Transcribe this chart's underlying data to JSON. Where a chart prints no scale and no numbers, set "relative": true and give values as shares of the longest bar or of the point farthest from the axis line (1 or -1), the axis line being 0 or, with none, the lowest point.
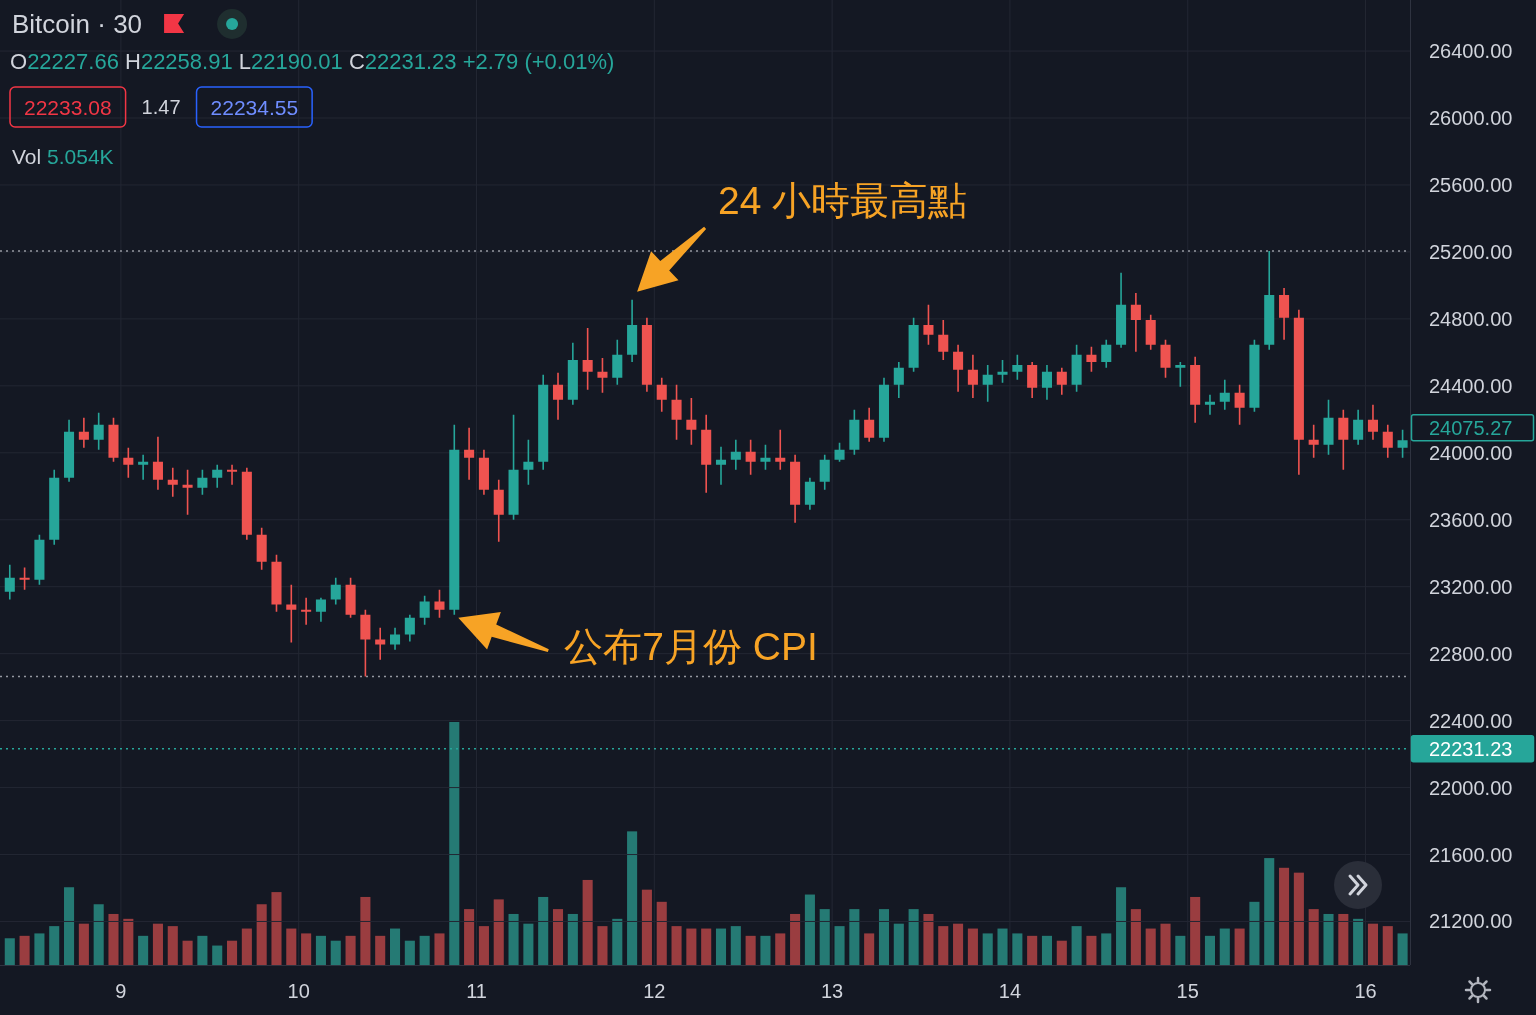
{
  "chart_data": [
    {
      "type": "candlestick",
      "title": "Bitcoin · 30",
      "annotations": [
        "O22227.66 H22258.91 L22190.01 C22231.23 +2.79 (+0.01%)",
        "22233.08",
        "1.47",
        "22234.55",
        {
          "text": "24 小時最高點",
          "x": 11.875,
          "y": 24914
        },
        {
          "text": "公布7月份 CPI",
          "x": 10.875,
          "y": 23033
        },
        "24075.27"
      ],
      "x": [
        8.375,
        8.4583,
        8.5417,
        8.625,
        8.7083,
        8.7917,
        8.875,
        8.9583,
        9.0417,
        9.125,
        9.2083,
        9.2917,
        9.375,
        9.4583,
        9.5417,
        9.625,
        9.7083,
        9.7917,
        9.875,
        9.9583,
        10.0417,
        10.125,
        10.2083,
        10.2917,
        10.375,
        10.4583,
        10.5417,
        10.625,
        10.7083,
        10.7917,
        10.875,
        10.9583,
        11.0417,
        11.125,
        11.2083,
        11.2917,
        11.375,
        11.4583,
        11.5417,
        11.625,
        11.7083,
        11.7917,
        11.875,
        11.9583,
        12.0417,
        12.125,
        12.2083,
        12.2917,
        12.375,
        12.4583,
        12.5417,
        12.625,
        12.7083,
        12.7917,
        12.875,
        12.9583,
        13.0417,
        13.125,
        13.2083,
        13.2917,
        13.375,
        13.4583,
        13.5417,
        13.625,
        13.7083,
        13.7917,
        13.875,
        13.9583,
        14.0417,
        14.125,
        14.2083,
        14.2917,
        14.375,
        14.4583,
        14.5417,
        14.625,
        14.7083,
        14.7917,
        14.875,
        14.9583,
        15.0417,
        15.125,
        15.2083,
        15.2917,
        15.375,
        15.4583,
        15.5417,
        15.625,
        15.7083,
        15.7917,
        15.875,
        15.9583,
        16.0417,
        16.125,
        16.2083
      ],
      "ohlc": [
        [
          23170,
          23331,
          23123,
          23254
        ],
        [
          23254,
          23314,
          23182,
          23242
        ],
        [
          23242,
          23511,
          23212,
          23481
        ],
        [
          23481,
          23899,
          23451,
          23851
        ],
        [
          23851,
          24197,
          23827,
          24125
        ],
        [
          24125,
          24209,
          24030,
          24078
        ],
        [
          24078,
          24239,
          24018,
          24167
        ],
        [
          24167,
          24209,
          23946,
          23970
        ],
        [
          23970,
          24030,
          23851,
          23928
        ],
        [
          23928,
          23988,
          23839,
          23946
        ],
        [
          23946,
          24096,
          23779,
          23839
        ],
        [
          23839,
          23911,
          23737,
          23809
        ],
        [
          23809,
          23899,
          23630,
          23791
        ],
        [
          23791,
          23899,
          23749,
          23851
        ],
        [
          23851,
          23928,
          23791,
          23899
        ],
        [
          23899,
          23928,
          23809,
          23887
        ],
        [
          23887,
          23911,
          23481,
          23511
        ],
        [
          23511,
          23552,
          23302,
          23349
        ],
        [
          23349,
          23391,
          23051,
          23093
        ],
        [
          23093,
          23212,
          22866,
          23063
        ],
        [
          23063,
          23134,
          22973,
          23051
        ],
        [
          23051,
          23134,
          22991,
          23123
        ],
        [
          23123,
          23254,
          23093,
          23212
        ],
        [
          23212,
          23254,
          23015,
          23033
        ],
        [
          23033,
          23063,
          22663,
          22884
        ],
        [
          22884,
          22955,
          22764,
          22854
        ],
        [
          22854,
          22955,
          22824,
          22914
        ],
        [
          22914,
          23033,
          22872,
          23015
        ],
        [
          23015,
          23146,
          22973,
          23111
        ],
        [
          23111,
          23182,
          23015,
          23063
        ],
        [
          23063,
          24167,
          23033,
          24018
        ],
        [
          24018,
          24149,
          23839,
          23970
        ],
        [
          23970,
          24018,
          23749,
          23779
        ],
        [
          23779,
          23839,
          23469,
          23630
        ],
        [
          23630,
          24227,
          23600,
          23899
        ],
        [
          23899,
          24078,
          23809,
          23946
        ],
        [
          23946,
          24466,
          23899,
          24406
        ],
        [
          24406,
          24478,
          24197,
          24317
        ],
        [
          24317,
          24657,
          24287,
          24555
        ],
        [
          24555,
          24746,
          24376,
          24484
        ],
        [
          24484,
          24567,
          24358,
          24448
        ],
        [
          24448,
          24675,
          24406,
          24585
        ],
        [
          24585,
          24914,
          24543,
          24764
        ],
        [
          24764,
          24806,
          24364,
          24406
        ],
        [
          24406,
          24448,
          24245,
          24317
        ],
        [
          24317,
          24406,
          24078,
          24197
        ],
        [
          24197,
          24328,
          24048,
          24137
        ],
        [
          24137,
          24227,
          23761,
          23928
        ],
        [
          23928,
          24036,
          23809,
          23958
        ],
        [
          23958,
          24078,
          23899,
          24006
        ],
        [
          24006,
          24078,
          23869,
          23946
        ],
        [
          23946,
          24048,
          23899,
          23970
        ],
        [
          23970,
          24137,
          23899,
          23946
        ],
        [
          23946,
          23988,
          23582,
          23690
        ],
        [
          23690,
          23851,
          23660,
          23827
        ],
        [
          23827,
          23988,
          23779,
          23958
        ],
        [
          23958,
          24060,
          23946,
          24018
        ],
        [
          24018,
          24257,
          23988,
          24197
        ],
        [
          24197,
          24269,
          24066,
          24090
        ],
        [
          24090,
          24448,
          24066,
          24406
        ],
        [
          24406,
          24543,
          24328,
          24508
        ],
        [
          24508,
          24806,
          24484,
          24764
        ],
        [
          24764,
          24884,
          24645,
          24705
        ],
        [
          24705,
          24794,
          24555,
          24603
        ],
        [
          24603,
          24645,
          24364,
          24496
        ],
        [
          24496,
          24585,
          24328,
          24406
        ],
        [
          24406,
          24525,
          24305,
          24466
        ],
        [
          24466,
          24555,
          24418,
          24484
        ],
        [
          24484,
          24585,
          24436,
          24525
        ],
        [
          24525,
          24543,
          24328,
          24388
        ],
        [
          24388,
          24525,
          24317,
          24484
        ],
        [
          24484,
          24508,
          24346,
          24406
        ],
        [
          24406,
          24645,
          24364,
          24585
        ],
        [
          24585,
          24633,
          24484,
          24543
        ],
        [
          24543,
          24675,
          24508,
          24645
        ],
        [
          24645,
          25075,
          24627,
          24884
        ],
        [
          24884,
          24955,
          24603,
          24794
        ],
        [
          24794,
          24824,
          24615,
          24645
        ],
        [
          24645,
          24675,
          24448,
          24508
        ],
        [
          24508,
          24543,
          24394,
          24525
        ],
        [
          24525,
          24573,
          24179,
          24287
        ],
        [
          24287,
          24346,
          24227,
          24305
        ],
        [
          24305,
          24436,
          24257,
          24358
        ],
        [
          24358,
          24406,
          24167,
          24269
        ],
        [
          24269,
          24675,
          24245,
          24645
        ],
        [
          24645,
          25206,
          24615,
          24943
        ],
        [
          24943,
          24985,
          24675,
          24806
        ],
        [
          24806,
          24854,
          23869,
          24078
        ],
        [
          24078,
          24167,
          23970,
          24048
        ],
        [
          24048,
          24317,
          23988,
          24209
        ],
        [
          24209,
          24257,
          23899,
          24078
        ],
        [
          24078,
          24257,
          24048,
          24197
        ],
        [
          24197,
          24287,
          24078,
          24125
        ],
        [
          24125,
          24167,
          23970,
          24030
        ],
        [
          24030,
          24137,
          23970,
          24075.27
        ]
      ],
      "colors": [
        "#26a69a",
        "#ef5350",
        "#26a69a",
        "#26a69a",
        "#26a69a",
        "#ef5350",
        "#26a69a",
        "#ef5350",
        "#ef5350",
        "#26a69a",
        "#ef5350",
        "#ef5350",
        "#ef5350",
        "#26a69a",
        "#26a69a",
        "#ef5350",
        "#ef5350",
        "#ef5350",
        "#ef5350",
        "#ef5350",
        "#ef5350",
        "#26a69a",
        "#26a69a",
        "#ef5350",
        "#ef5350",
        "#ef5350",
        "#26a69a",
        "#26a69a",
        "#26a69a",
        "#ef5350",
        "#26a69a",
        "#ef5350",
        "#ef5350",
        "#ef5350",
        "#26a69a",
        "#26a69a",
        "#26a69a",
        "#ef5350",
        "#26a69a",
        "#ef5350",
        "#ef5350",
        "#26a69a",
        "#26a69a",
        "#ef5350",
        "#ef5350",
        "#ef5350",
        "#ef5350",
        "#ef5350",
        "#26a69a",
        "#26a69a",
        "#ef5350",
        "#26a69a",
        "#ef5350",
        "#ef5350",
        "#26a69a",
        "#26a69a",
        "#26a69a",
        "#26a69a",
        "#ef5350",
        "#26a69a",
        "#26a69a",
        "#26a69a",
        "#ef5350",
        "#ef5350",
        "#ef5350",
        "#ef5350",
        "#26a69a",
        "#26a69a",
        "#26a69a",
        "#ef5350",
        "#26a69a",
        "#ef5350",
        "#26a69a",
        "#ef5350",
        "#26a69a",
        "#26a69a",
        "#ef5350",
        "#ef5350",
        "#ef5350",
        "#26a69a",
        "#ef5350",
        "#26a69a",
        "#26a69a",
        "#ef5350",
        "#26a69a",
        "#26a69a",
        "#ef5350",
        "#ef5350",
        "#ef5350",
        "#26a69a",
        "#ef5350",
        "#26a69a",
        "#ef5350",
        "#ef5350",
        "#26a69a"
      ],
      "xlim": [
        8.32,
        16.25
      ],
      "xticks": [
        9,
        10,
        11,
        12,
        13,
        14,
        15,
        16
      ],
      "ylim": [
        20940,
        26705
      ],
      "yticks": [
        {
          "value": 21200,
          "label": "21200.00"
        },
        {
          "value": 21600,
          "label": "21600.00"
        },
        {
          "value": 22000,
          "label": "22000.00"
        },
        {
          "value": 22400,
          "label": "22400.00"
        },
        {
          "value": 22800,
          "label": "22800.00"
        },
        {
          "value": 23200,
          "label": "23200.00"
        },
        {
          "value": 23600,
          "label": "23600.00"
        },
        {
          "value": 24000,
          "label": "24000.00"
        },
        {
          "value": 24400,
          "label": "24400.00"
        },
        {
          "value": 24800,
          "label": "24800.00"
        },
        {
          "value": 25200,
          "label": "25200.00"
        },
        {
          "value": 25600,
          "label": "25600.00"
        },
        {
          "value": 26000,
          "label": "26000.00"
        },
        {
          "value": 26400,
          "label": "26400.00"
        }
      ],
      "grid": true,
      "ref_lines": [
        {
          "axis": "y",
          "value": 25206,
          "color": "#9598a1",
          "line_style": "dotted"
        },
        {
          "axis": "y",
          "value": 22663,
          "color": "#9598a1",
          "line_style": "dotted"
        },
        {
          "axis": "y",
          "value": 22231.23,
          "label": "22231.23",
          "color": "#26a69a",
          "line_style": "dotted"
        }
      ]
    },
    {
      "type": "bar",
      "relative": true,
      "annotations": [
        "Vol 5.054K"
      ],
      "x": [
        8.375,
        8.4583,
        8.5417,
        8.625,
        8.7083,
        8.7917,
        8.875,
        8.9583,
        9.0417,
        9.125,
        9.2083,
        9.2917,
        9.375,
        9.4583,
        9.5417,
        9.625,
        9.7083,
        9.7917,
        9.875,
        9.9583,
        10.0417,
        10.125,
        10.2083,
        10.2917,
        10.375,
        10.4583,
        10.5417,
        10.625,
        10.7083,
        10.7917,
        10.875,
        10.9583,
        11.0417,
        11.125,
        11.2083,
        11.2917,
        11.375,
        11.4583,
        11.5417,
        11.625,
        11.7083,
        11.7917,
        11.875,
        11.9583,
        12.0417,
        12.125,
        12.2083,
        12.2917,
        12.375,
        12.4583,
        12.5417,
        12.625,
        12.7083,
        12.7917,
        12.875,
        12.9583,
        13.0417,
        13.125,
        13.2083,
        13.2917,
        13.375,
        13.4583,
        13.5417,
        13.625,
        13.7083,
        13.7917,
        13.875,
        13.9583,
        14.0417,
        14.125,
        14.2083,
        14.2917,
        14.375,
        14.4583,
        14.5417,
        14.625,
        14.7083,
        14.7917,
        14.875,
        14.9583,
        15.0417,
        15.125,
        15.2083,
        15.2917,
        15.375,
        15.4583,
        15.5417,
        15.625,
        15.7083,
        15.7917,
        15.875,
        15.9583,
        16.0417,
        16.125,
        16.2083
      ],
      "values": [
        0.11,
        0.12,
        0.13,
        0.16,
        0.32,
        0.17,
        0.25,
        0.21,
        0.19,
        0.12,
        0.17,
        0.16,
        0.1,
        0.12,
        0.08,
        0.1,
        0.15,
        0.25,
        0.3,
        0.15,
        0.13,
        0.12,
        0.1,
        0.12,
        0.28,
        0.12,
        0.15,
        0.1,
        0.12,
        0.13,
        1,
        0.23,
        0.16,
        0.27,
        0.21,
        0.17,
        0.28,
        0.23,
        0.21,
        0.35,
        0.16,
        0.19,
        0.55,
        0.31,
        0.26,
        0.16,
        0.15,
        0.15,
        0.15,
        0.16,
        0.12,
        0.12,
        0.13,
        0.21,
        0.29,
        0.23,
        0.16,
        0.23,
        0.13,
        0.23,
        0.17,
        0.23,
        0.21,
        0.16,
        0.17,
        0.15,
        0.13,
        0.15,
        0.13,
        0.12,
        0.12,
        0.1,
        0.16,
        0.12,
        0.13,
        0.32,
        0.23,
        0.15,
        0.17,
        0.12,
        0.28,
        0.12,
        0.15,
        0.15,
        0.26,
        0.44,
        0.4,
        0.38,
        0.23,
        0.21,
        0.21,
        0.19,
        0.17,
        0.16,
        0.13
      ],
      "colors": [
        "#257a74",
        "#9a3d40",
        "#257a74",
        "#257a74",
        "#257a74",
        "#9a3d40",
        "#257a74",
        "#9a3d40",
        "#9a3d40",
        "#257a74",
        "#9a3d40",
        "#9a3d40",
        "#9a3d40",
        "#257a74",
        "#257a74",
        "#9a3d40",
        "#9a3d40",
        "#9a3d40",
        "#9a3d40",
        "#9a3d40",
        "#9a3d40",
        "#257a74",
        "#257a74",
        "#9a3d40",
        "#9a3d40",
        "#9a3d40",
        "#257a74",
        "#257a74",
        "#257a74",
        "#9a3d40",
        "#257a74",
        "#9a3d40",
        "#9a3d40",
        "#9a3d40",
        "#257a74",
        "#257a74",
        "#257a74",
        "#9a3d40",
        "#257a74",
        "#9a3d40",
        "#9a3d40",
        "#257a74",
        "#257a74",
        "#9a3d40",
        "#9a3d40",
        "#9a3d40",
        "#9a3d40",
        "#9a3d40",
        "#257a74",
        "#257a74",
        "#9a3d40",
        "#257a74",
        "#9a3d40",
        "#9a3d40",
        "#257a74",
        "#257a74",
        "#257a74",
        "#257a74",
        "#9a3d40",
        "#257a74",
        "#257a74",
        "#257a74",
        "#9a3d40",
        "#9a3d40",
        "#9a3d40",
        "#9a3d40",
        "#257a74",
        "#257a74",
        "#257a74",
        "#9a3d40",
        "#257a74",
        "#9a3d40",
        "#257a74",
        "#9a3d40",
        "#257a74",
        "#257a74",
        "#9a3d40",
        "#9a3d40",
        "#9a3d40",
        "#257a74",
        "#9a3d40",
        "#257a74",
        "#257a74",
        "#9a3d40",
        "#257a74",
        "#257a74",
        "#9a3d40",
        "#9a3d40",
        "#9a3d40",
        "#257a74",
        "#9a3d40",
        "#257a74",
        "#9a3d40",
        "#9a3d40",
        "#257a74"
      ],
      "xlim": [
        8.32,
        16.25
      ]
    }
  ]
}
